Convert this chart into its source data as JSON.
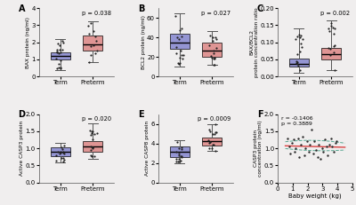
{
  "panel_A": {
    "label": "A",
    "ylabel": "BAX protein (ng/ml)",
    "pvalue": "p = 0.038",
    "term": {
      "median": 1.2,
      "q1": 1.0,
      "q3": 1.4,
      "whislo": 0.4,
      "whishi": 2.2
    },
    "preterm": {
      "median": 1.9,
      "q1": 1.5,
      "q3": 2.4,
      "whislo": 0.85,
      "whishi": 3.25
    },
    "ylim": [
      0,
      4
    ],
    "yticks": [
      0,
      1,
      2,
      3,
      4
    ],
    "n_term": 18,
    "n_preterm": 12
  },
  "panel_B": {
    "label": "B",
    "ylabel": "BCL2 protein (ng/ml)",
    "pvalue": "p = 0.027",
    "term": {
      "median": 35,
      "q1": 28,
      "q3": 44,
      "whislo": 10,
      "whishi": 65
    },
    "preterm": {
      "median": 27,
      "q1": 20,
      "q3": 35,
      "whislo": 12,
      "whishi": 47
    },
    "ylim": [
      0,
      70
    ],
    "yticks": [
      0,
      20,
      40,
      60
    ],
    "n_term": 16,
    "n_preterm": 16
  },
  "panel_C": {
    "label": "C",
    "ylabel": "BAX/BCL2\nprotein concentration ratio",
    "pvalue": "p = 0.002",
    "term": {
      "median": 0.038,
      "q1": 0.028,
      "q3": 0.052,
      "whislo": 0.012,
      "whishi": 0.14
    },
    "preterm": {
      "median": 0.065,
      "q1": 0.05,
      "q3": 0.085,
      "whislo": 0.02,
      "whishi": 0.165
    },
    "ylim": [
      0,
      0.2
    ],
    "yticks": [
      0.0,
      0.05,
      0.1,
      0.15,
      0.2
    ],
    "n_term": 16,
    "n_preterm": 14
  },
  "panel_D": {
    "label": "D",
    "ylabel": "Active CASP3 protein",
    "pvalue": "p = 0.020",
    "term": {
      "median": 0.9,
      "q1": 0.78,
      "q3": 1.02,
      "whislo": 0.58,
      "whishi": 1.15
    },
    "preterm": {
      "median": 1.05,
      "q1": 0.9,
      "q3": 1.2,
      "whislo": 0.7,
      "whishi": 1.72
    },
    "ylim": [
      0,
      2.0
    ],
    "yticks": [
      0,
      0.5,
      1.0,
      1.5,
      2.0
    ],
    "n_term": 16,
    "n_preterm": 16
  },
  "panel_E": {
    "label": "E",
    "ylabel": "Active CASP8 protein",
    "pvalue": "p = 0.0009",
    "term": {
      "median": 3.1,
      "q1": 2.6,
      "q3": 3.7,
      "whislo": 2.0,
      "whishi": 4.3
    },
    "preterm": {
      "median": 4.2,
      "q1": 3.8,
      "q3": 4.6,
      "whislo": 3.2,
      "whishi": 6.0
    },
    "ylim": [
      0,
      7
    ],
    "yticks": [
      0,
      2,
      4,
      6
    ],
    "n_term": 16,
    "n_preterm": 16
  },
  "panel_F": {
    "label": "F",
    "xlabel": "Baby weight (kg)",
    "ylabel": "CASP3 protein\nconcentration (ng/ml)",
    "annotation": "r = -0.1406\np = 0.3889",
    "xlim": [
      0,
      5
    ],
    "ylim": [
      0,
      2.0
    ],
    "yticks": [
      0.0,
      0.5,
      1.0,
      1.5,
      2.0
    ],
    "xticks": [
      0,
      1,
      2,
      3,
      4,
      5
    ],
    "scatter_x": [
      0.65,
      0.75,
      0.85,
      0.95,
      1.05,
      1.1,
      1.2,
      1.35,
      1.45,
      1.55,
      1.65,
      1.75,
      1.85,
      1.95,
      2.05,
      2.15,
      2.25,
      2.35,
      2.45,
      2.55,
      2.65,
      2.75,
      2.85,
      2.95,
      3.05,
      3.15,
      3.25,
      3.35,
      3.45,
      3.55,
      3.65,
      3.75,
      3.85,
      3.95
    ],
    "scatter_y": [
      1.3,
      1.05,
      0.85,
      1.15,
      1.25,
      0.9,
      1.0,
      1.3,
      0.75,
      1.1,
      1.35,
      0.8,
      1.0,
      1.2,
      0.9,
      1.1,
      1.55,
      0.85,
      1.2,
      0.95,
      0.75,
      1.1,
      0.7,
      1.0,
      0.9,
      1.25,
      1.05,
      0.8,
      1.1,
      1.3,
      1.05,
      0.9,
      1.15,
      1.2
    ]
  },
  "colors": {
    "term": "#6e70c8",
    "preterm": "#d9706e",
    "scatter_dot": "#2b2b2b",
    "regression_line": "#d94040",
    "ci_line": "#3d9980"
  },
  "bg_color": "#f0eeee"
}
